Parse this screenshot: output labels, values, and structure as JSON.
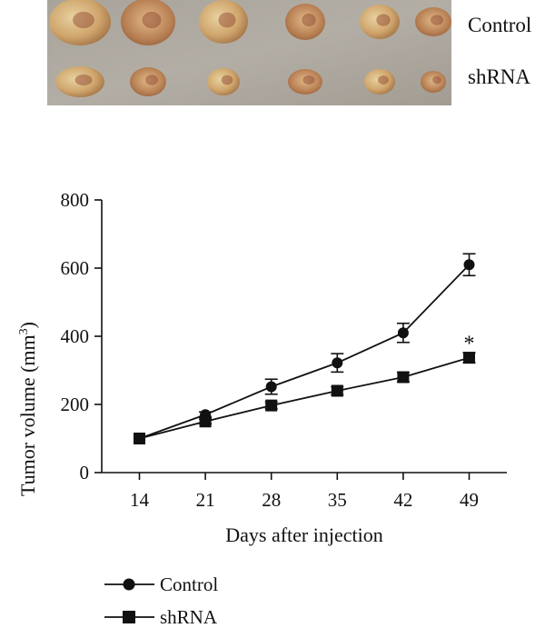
{
  "photo": {
    "rows": [
      {
        "label": "Control",
        "tumor_count": 6
      },
      {
        "label": "shRNA",
        "tumor_count": 6
      }
    ]
  },
  "chart_data": {
    "type": "line",
    "title": "",
    "xlabel": "Days after injection",
    "ylabel": "Tumor volume (mm3)",
    "ylabel_main": "Tumor volume (mm",
    "ylabel_sup": "3",
    "ylabel_close": ")",
    "x": [
      14,
      21,
      28,
      35,
      42,
      49
    ],
    "xlim": [
      10,
      53
    ],
    "ylim": [
      0,
      800
    ],
    "yticks": [
      0,
      200,
      400,
      600,
      800
    ],
    "grid": false,
    "legend_position": "bottom-left",
    "series": [
      {
        "name": "Control",
        "marker": "circle",
        "values": [
          100,
          170,
          252,
          322,
          410,
          610
        ],
        "errors": [
          0,
          8,
          22,
          27,
          28,
          32
        ]
      },
      {
        "name": "shRNA",
        "marker": "square",
        "values": [
          100,
          150,
          197,
          240,
          280,
          337
        ],
        "errors": [
          0,
          7,
          10,
          12,
          14,
          15
        ]
      }
    ],
    "annotations": [
      {
        "text": "*",
        "x": 49,
        "y": 380
      }
    ]
  }
}
